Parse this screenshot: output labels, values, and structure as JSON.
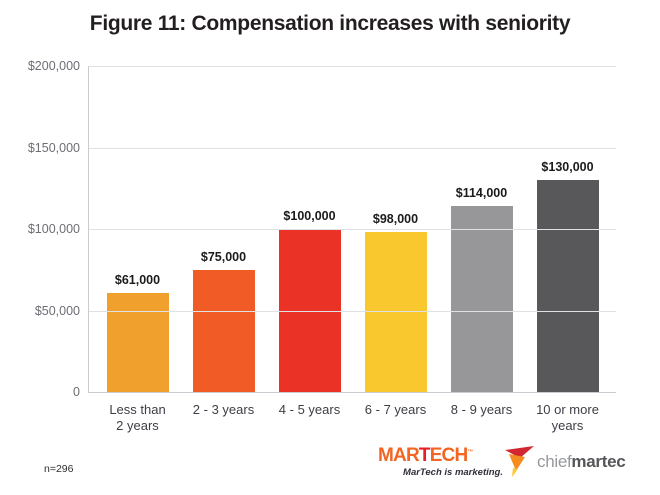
{
  "title": "Figure 11: Compensation increases with seniority",
  "chart_data": {
    "type": "bar",
    "title": "Figure 11: Compensation increases with seniority",
    "categories": [
      "Less than\n2 years",
      "2 - 3 years",
      "4 - 5 years",
      "6 - 7 years",
      "8 - 9 years",
      "10 or more\nyears"
    ],
    "values": [
      61000,
      75000,
      100000,
      98000,
      114000,
      130000
    ],
    "data_labels": [
      "$61,000",
      "$75,000",
      "$100,000",
      "$98,000",
      "$114,000",
      "$130,000"
    ],
    "bar_colors": [
      "#F0A02C",
      "#F15B25",
      "#EA3226",
      "#F9C82F",
      "#97979A",
      "#58585A"
    ],
    "xlabel": "",
    "ylabel": "",
    "ylim": [
      0,
      200000
    ],
    "yticks": [
      {
        "value": 200000,
        "label": "$200,000"
      },
      {
        "value": 150000,
        "label": "$150,000"
      },
      {
        "value": 100000,
        "label": "$100,000"
      },
      {
        "value": 50000,
        "label": "$50,000"
      },
      {
        "value": 0,
        "label": "0"
      }
    ],
    "grid": "horizontal",
    "legend": "none"
  },
  "footer": {
    "sample_size": "n=296",
    "martech": {
      "part1": "MAR",
      "part2": "T",
      "part3": "ECH",
      "trademark": "™",
      "tagline": "MarTech is marketing.",
      "orange": "#F26522",
      "red": "#EC1C24"
    },
    "chiefmartec": {
      "part1": "chief",
      "part2": "martec",
      "icon_colors": {
        "red": "#D22630",
        "orange": "#F68B1F",
        "yellow": "#FDC82F"
      }
    }
  }
}
